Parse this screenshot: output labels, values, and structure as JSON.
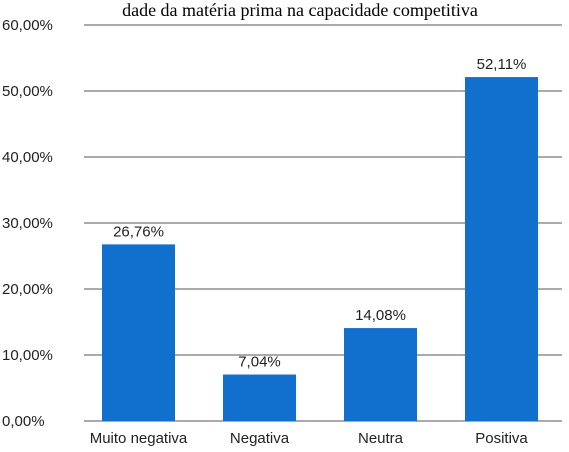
{
  "chart_data": {
    "type": "bar",
    "title": "dade da matéria prima na capacidade competitiva",
    "categories": [
      "Muito negativa",
      "Negativa",
      "Neutra",
      "Positiva"
    ],
    "values": [
      26.76,
      7.04,
      14.08,
      52.11
    ],
    "value_labels": [
      "26,76%",
      "7,04%",
      "14,08%",
      "52,11%"
    ],
    "ylim": [
      0,
      60
    ],
    "yticks": [
      "0,00%",
      "10,00%",
      "20,00%",
      "30,00%",
      "40,00%",
      "50,00%",
      "60,00%"
    ],
    "xlabel": "",
    "ylabel": "",
    "grid": true,
    "legend": "none",
    "bar_color": "#1170CE",
    "grid_color": "#555555"
  }
}
